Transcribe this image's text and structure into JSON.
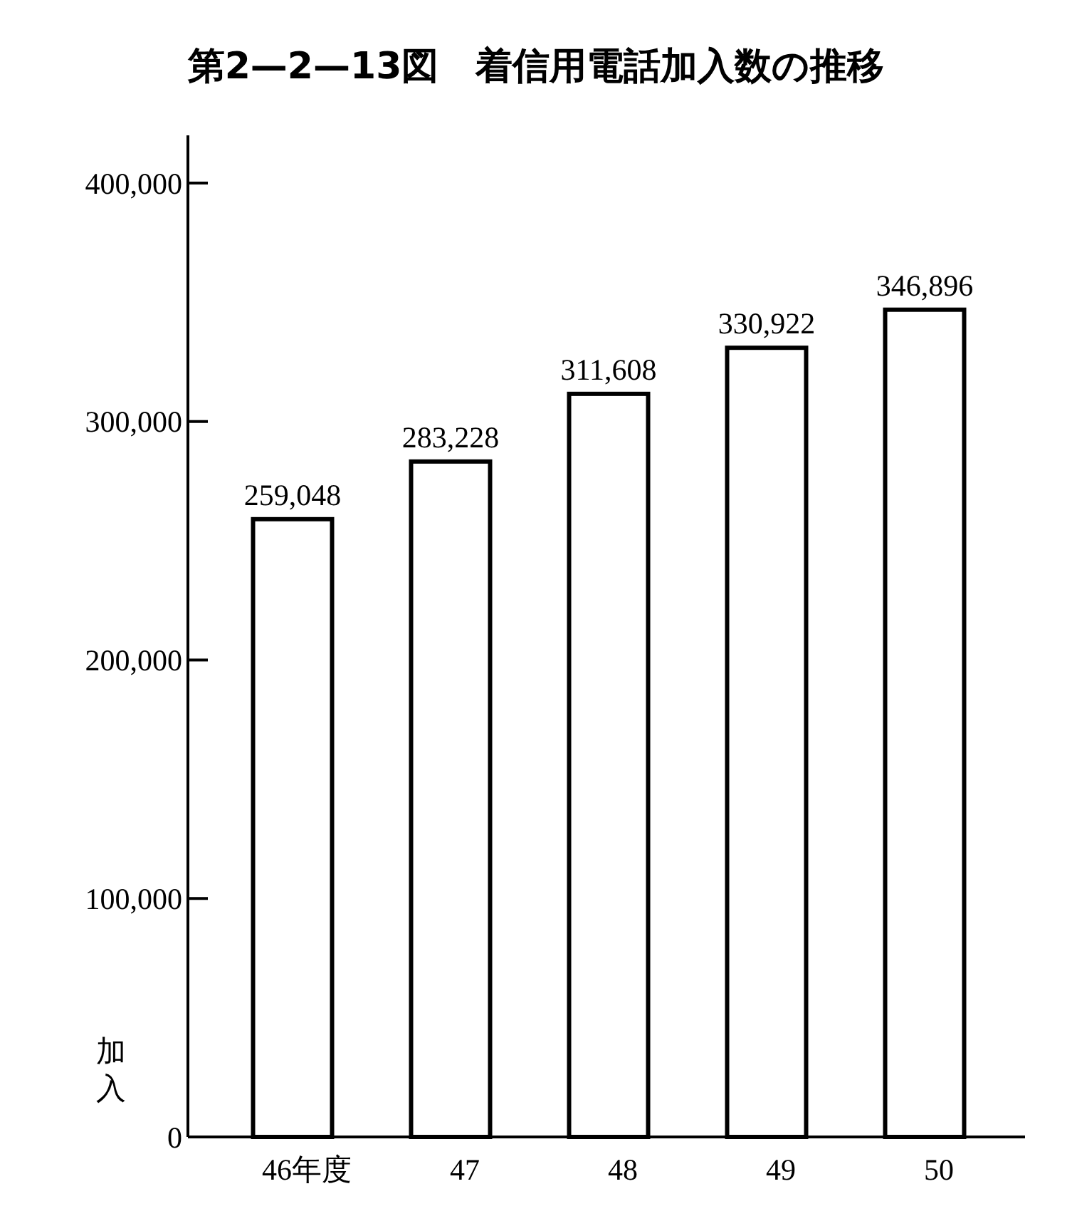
{
  "chart_data": {
    "type": "bar",
    "title": "第2—2—13図　着信用電話加入数の推移",
    "ylabel": "加入",
    "categories": [
      "46年度",
      "47",
      "48",
      "49",
      "50"
    ],
    "values": [
      259048,
      283228,
      311608,
      330922,
      346896
    ],
    "value_labels": [
      "259,048",
      "283,228",
      "311,608",
      "330,922",
      "346,896"
    ],
    "color": "#ffffff",
    "ylim": [
      0,
      420000
    ],
    "yticks": [
      0,
      {
        "value": 100000,
        "label": "100,000"
      },
      {
        "value": 200000,
        "label": "200,000"
      },
      {
        "value": 300000,
        "label": "300,000"
      },
      {
        "value": 400000,
        "label": "400,000"
      }
    ],
    "grid": false
  }
}
